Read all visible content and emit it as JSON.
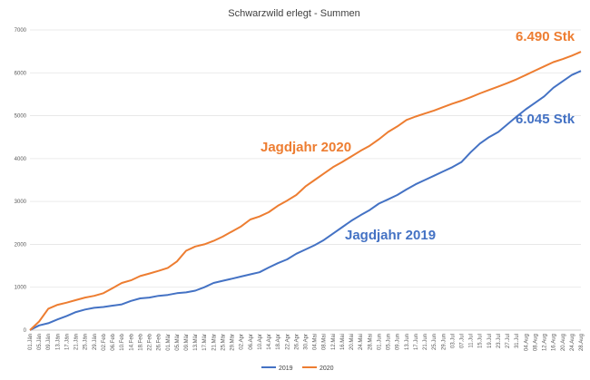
{
  "chart_data": {
    "type": "line",
    "title": "Schwarzwild erlegt - Summen",
    "ylim": [
      0,
      7000
    ],
    "y_ticks": [
      "0",
      "1000",
      "2000",
      "3000",
      "4000",
      "5000",
      "6000",
      "7000"
    ],
    "x_labels": [
      "01.Jän",
      "05.Jän",
      "09.Jän",
      "13.Jän",
      "17.Jän",
      "21.Jän",
      "25.Jän",
      "29.Jän",
      "02.Feb",
      "06.Feb",
      "10.Feb",
      "14.Feb",
      "18.Feb",
      "22.Feb",
      "26.Feb",
      "01.Mär",
      "05.Mär",
      "09.Mär",
      "13.Mär",
      "17.Mär",
      "21.Mär",
      "25.Mär",
      "29.Mär",
      "02.Apr",
      "06.Apr",
      "10.Apr",
      "14.Apr",
      "18.Apr",
      "22.Apr",
      "26.Apr",
      "30.Apr",
      "04.Mai",
      "08.Mai",
      "12.Mai",
      "16.Mai",
      "20.Mai",
      "24.Mai",
      "28.Mai",
      "01.Jun",
      "05.Jun",
      "09.Jun",
      "13.Jun",
      "17.Jun",
      "21.Jun",
      "25.Jun",
      "29.Jun",
      "03.Jul",
      "07.Jul",
      "11.Jul",
      "15.Jul",
      "19.Jul",
      "23.Jul",
      "27.Jul",
      "31.Jul",
      "04.Aug",
      "08.Aug",
      "12.Aug",
      "16.Aug",
      "20.Aug",
      "24.Aug",
      "28.Aug"
    ],
    "grid": true,
    "legend_position": "bottom",
    "series": [
      {
        "name": "2019",
        "color": "#4472c4",
        "values": [
          0,
          110,
          160,
          250,
          330,
          420,
          480,
          520,
          540,
          570,
          600,
          680,
          740,
          760,
          800,
          820,
          860,
          880,
          920,
          1000,
          1100,
          1150,
          1200,
          1250,
          1300,
          1350,
          1460,
          1560,
          1650,
          1780,
          1880,
          1980,
          2100,
          2250,
          2400,
          2550,
          2680,
          2800,
          2950,
          3050,
          3150,
          3280,
          3400,
          3500,
          3600,
          3700,
          3800,
          3920,
          4150,
          4350,
          4500,
          4620,
          4800,
          4980,
          5150,
          5300,
          5450,
          5650,
          5800,
          5950,
          6045
        ]
      },
      {
        "name": "2020",
        "color": "#ed7d31",
        "values": [
          0,
          200,
          500,
          590,
          640,
          700,
          760,
          800,
          860,
          980,
          1100,
          1160,
          1260,
          1320,
          1380,
          1450,
          1600,
          1850,
          1950,
          2000,
          2080,
          2180,
          2300,
          2420,
          2580,
          2650,
          2750,
          2900,
          3020,
          3150,
          3350,
          3500,
          3650,
          3800,
          3920,
          4050,
          4180,
          4300,
          4450,
          4620,
          4750,
          4900,
          4980,
          5050,
          5120,
          5200,
          5280,
          5350,
          5430,
          5520,
          5600,
          5680,
          5760,
          5850,
          5950,
          6050,
          6150,
          6250,
          6320,
          6400,
          6490
        ]
      }
    ],
    "annotations": [
      {
        "text": "6.490 Stk",
        "color": "#ed7d31"
      },
      {
        "text": "Jagdjahr 2020",
        "color": "#ed7d31"
      },
      {
        "text": "6.045 Stk",
        "color": "#4472c4"
      },
      {
        "text": "Jagdjahr 2019",
        "color": "#4472c4"
      }
    ]
  }
}
